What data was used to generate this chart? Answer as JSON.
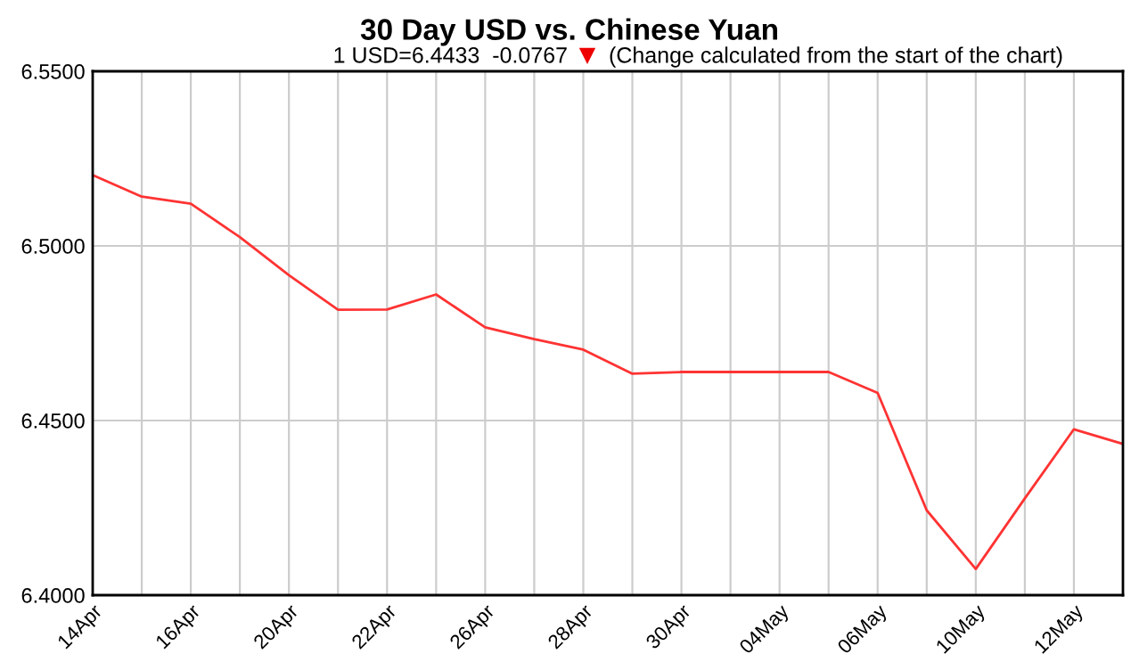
{
  "chart_data": {
    "type": "line",
    "title": "30 Day USD vs. Chinese Yuan",
    "subtitle": "1 USD=6.4433  -0.0767",
    "annotations": [
      "(Change calculated from the start of the chart)"
    ],
    "categories": [
      "14Apr",
      null,
      "16Apr",
      null,
      "20Apr",
      null,
      "22Apr",
      null,
      "26Apr",
      null,
      "28Apr",
      null,
      "30Apr",
      null,
      "04May",
      null,
      "06May",
      null,
      "10May",
      null,
      "12May",
      null
    ],
    "series": [
      {
        "color": "#ff3333",
        "values": [
          6.5203,
          6.5141,
          6.5121,
          6.5025,
          6.4916,
          6.4817,
          6.4818,
          6.4861,
          6.4767,
          6.4733,
          6.4703,
          6.4634,
          6.4639,
          6.4639,
          6.4639,
          6.4639,
          6.4579,
          6.4243,
          6.4075,
          6.4277,
          6.4475,
          6.4433
        ]
      }
    ],
    "ylim": [
      6.4,
      6.55
    ],
    "yticks": [
      {
        "value": 6.4,
        "label": "6.4000"
      },
      {
        "value": 6.45,
        "label": "6.4500"
      },
      {
        "value": 6.5,
        "label": "6.5000"
      },
      {
        "value": 6.55,
        "label": "6.5500"
      }
    ],
    "grid": true,
    "marker": "none",
    "line_style": "solid"
  }
}
